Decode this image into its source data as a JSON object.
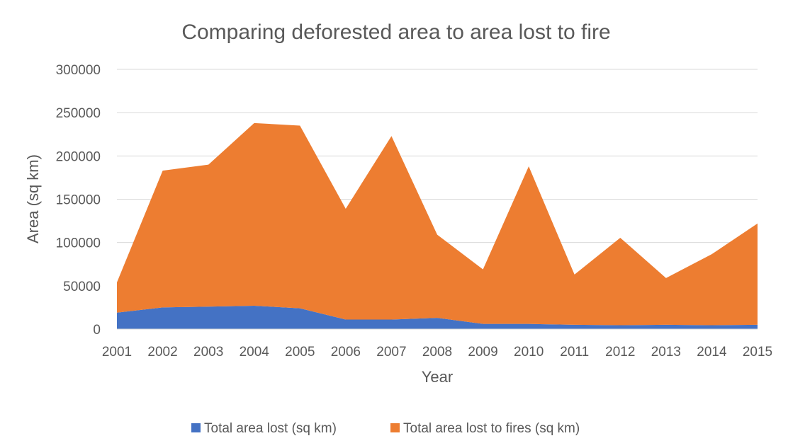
{
  "chart_data": {
    "type": "area",
    "stacked": true,
    "title": "Comparing deforested area to area lost to fire",
    "xlabel": "Year",
    "ylabel": "Area (sq km)",
    "ylim": [
      0,
      300000
    ],
    "yticks": [
      "0",
      "50000",
      "100000",
      "150000",
      "200000",
      "250000",
      "300000"
    ],
    "x": [
      "2001",
      "2002",
      "2003",
      "2004",
      "2005",
      "2006",
      "2007",
      "2008",
      "2009",
      "2010",
      "2011",
      "2012",
      "2013",
      "2014",
      "2015"
    ],
    "grid": true,
    "legend_position": "bottom",
    "series": [
      {
        "name": "Total area lost (sq km)",
        "color": "#4472C4",
        "values": [
          19000,
          25000,
          26000,
          27000,
          24000,
          11000,
          11000,
          13000,
          6000,
          6000,
          5000,
          4500,
          5000,
          4500,
          5000
        ]
      },
      {
        "name": "Total area lost to fires (sq km)",
        "color": "#ED7D31",
        "values": [
          35000,
          158000,
          164000,
          211000,
          211000,
          128000,
          212000,
          96000,
          63000,
          182000,
          58000,
          101000,
          54000,
          82000,
          117000
        ]
      }
    ]
  }
}
